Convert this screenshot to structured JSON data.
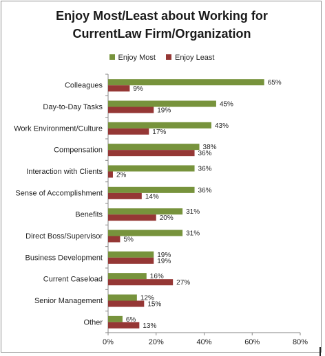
{
  "chart_data": {
    "type": "bar",
    "orientation": "horizontal",
    "title_lines": [
      "Enjoy Most/Least about Working for",
      "CurrentLaw Firm/Organization"
    ],
    "categories": [
      "Colleagues",
      "Day-to-Day Tasks",
      "Work Environment/Culture",
      "Compensation",
      "Interaction with Clients",
      "Sense of Accomplishment",
      "Benefits",
      "Direct Boss/Supervisor",
      "Business Development",
      "Current Caseload",
      "Senior Management",
      "Other"
    ],
    "series": [
      {
        "name": "Enjoy Most",
        "color": "#77933c",
        "values": [
          65,
          45,
          43,
          38,
          36,
          36,
          31,
          31,
          19,
          16,
          12,
          6
        ]
      },
      {
        "name": "Enjoy Least",
        "color": "#953735",
        "values": [
          9,
          19,
          17,
          36,
          2,
          14,
          20,
          5,
          19,
          27,
          15,
          13
        ]
      }
    ],
    "data_label_suffix": "%",
    "xlim": [
      0,
      80
    ],
    "x_ticks": [
      "0%",
      "20%",
      "40%",
      "60%",
      "80%"
    ],
    "x_tick_values": [
      0,
      20,
      40,
      60,
      80
    ],
    "legend_position": "top",
    "grid": false
  }
}
